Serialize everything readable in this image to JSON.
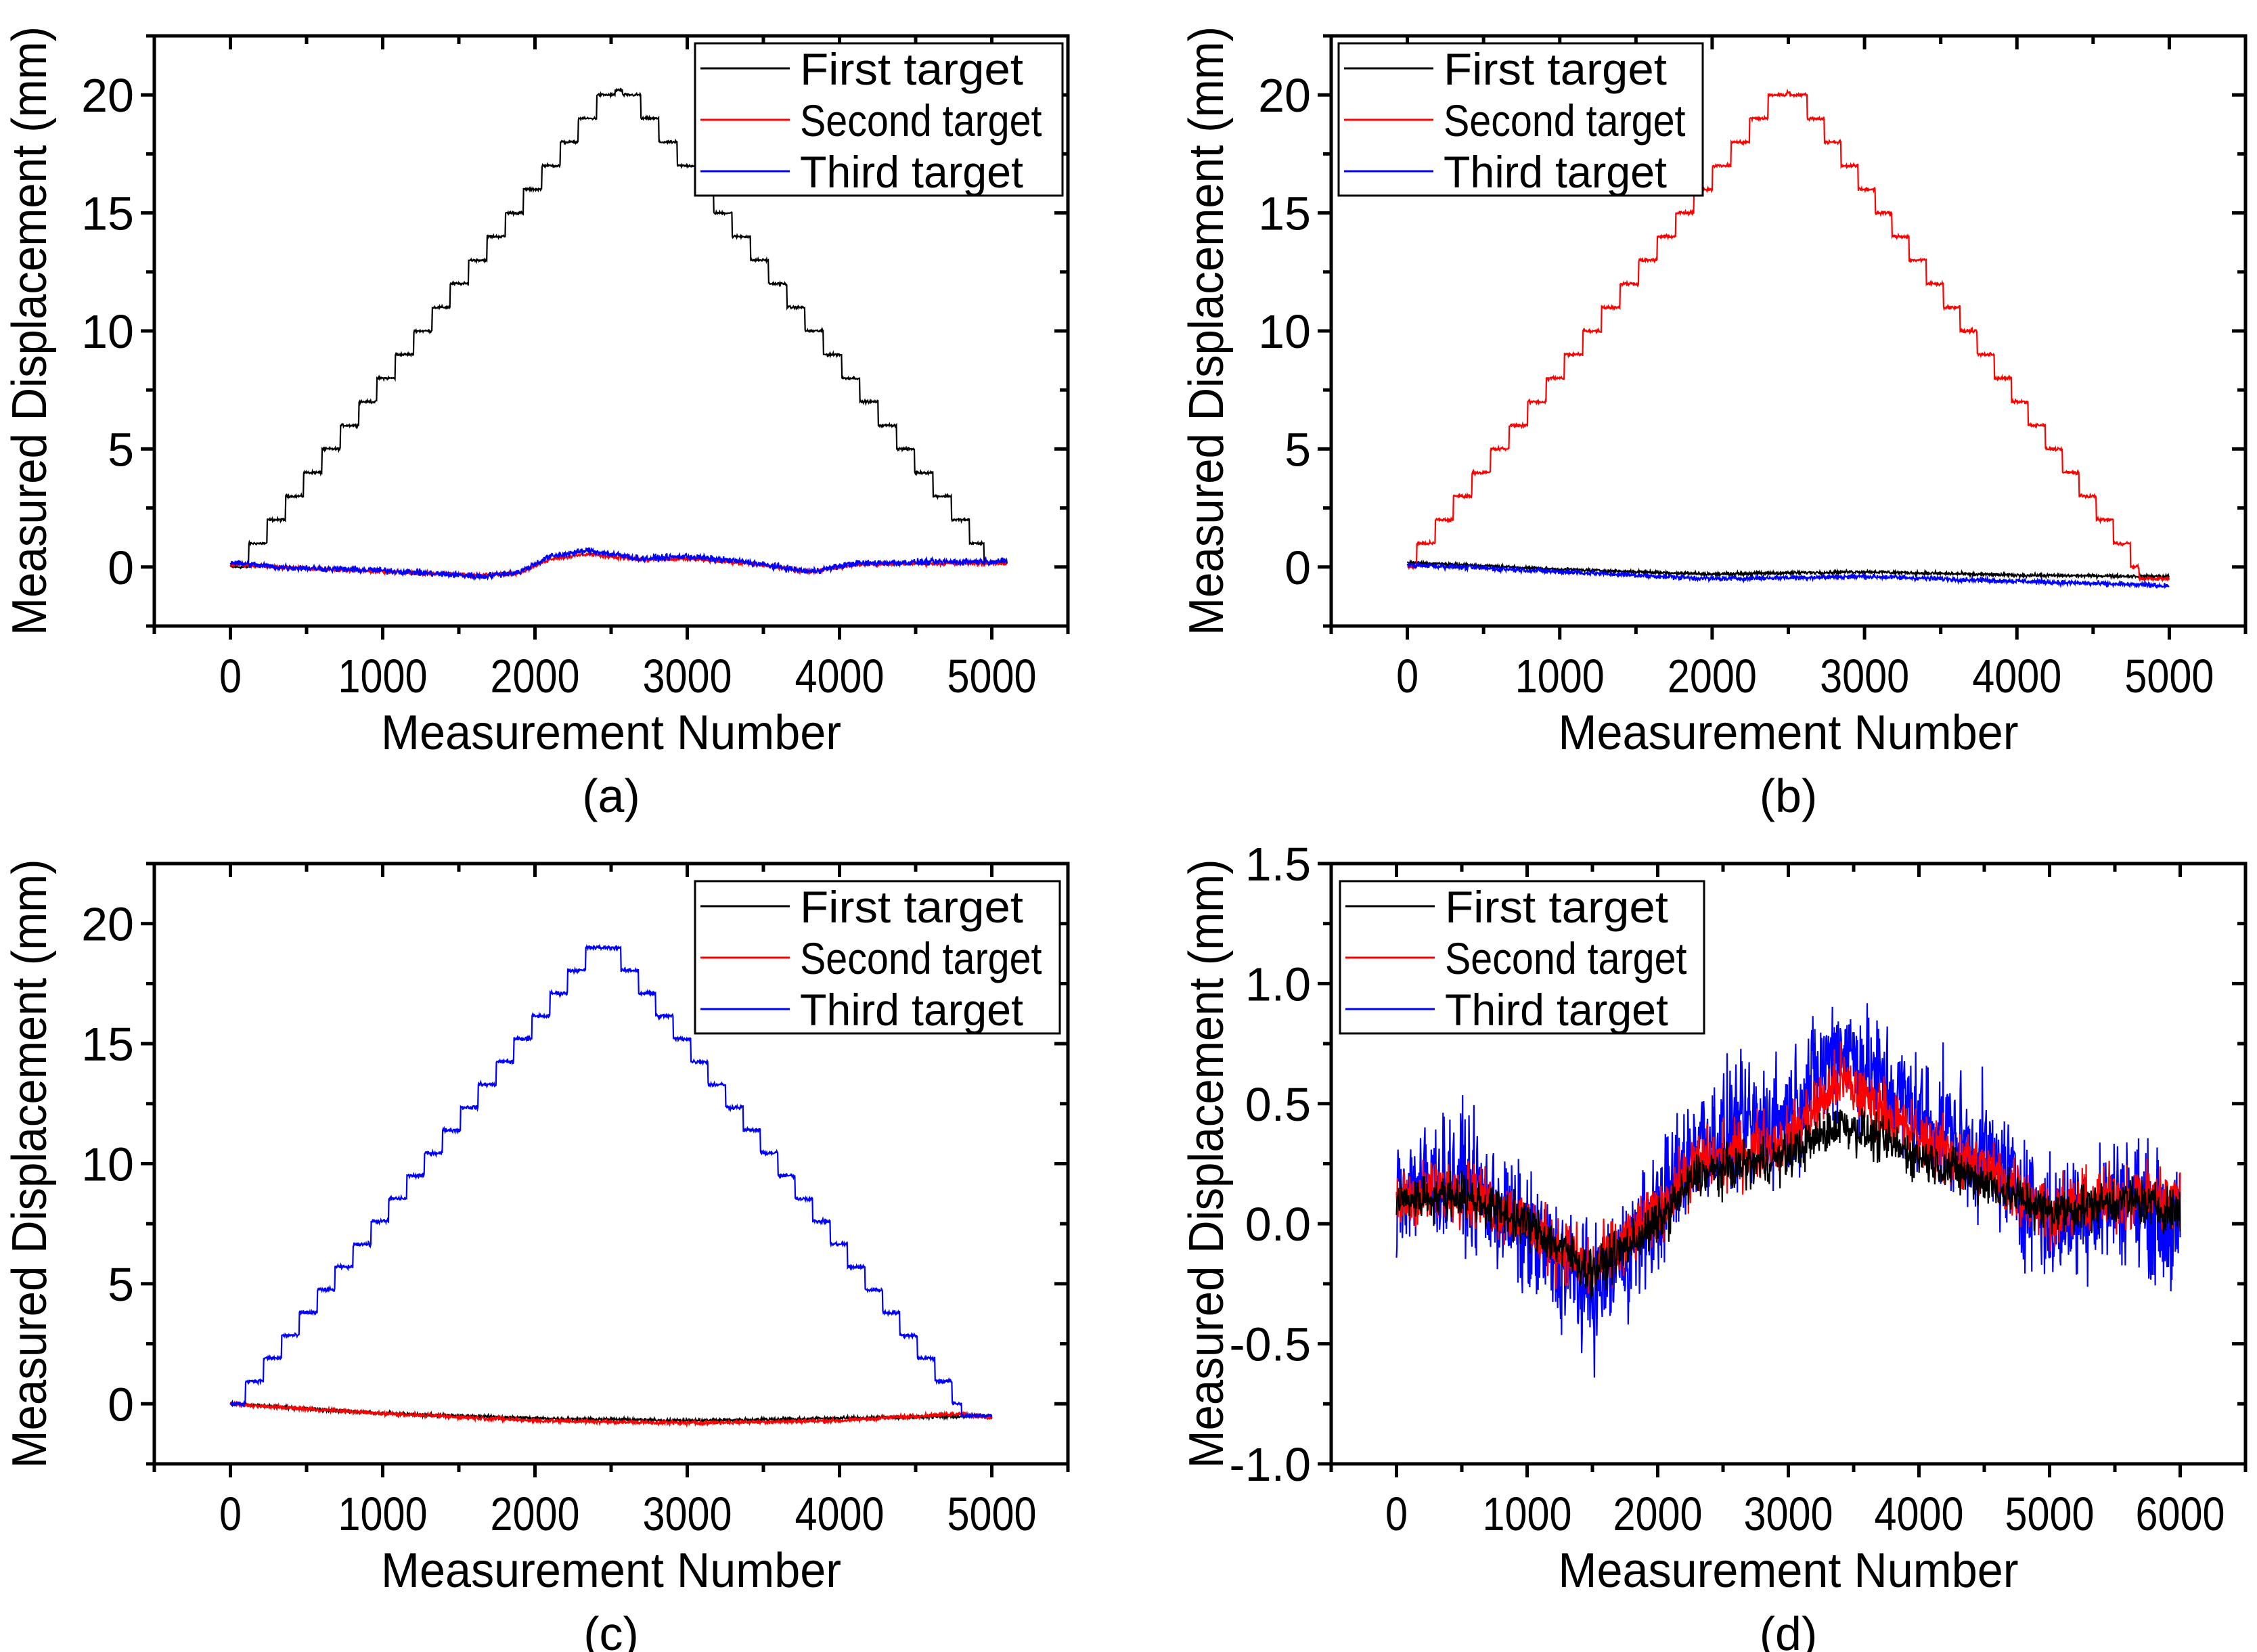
{
  "chart_data": [
    {
      "type": "line",
      "caption": "(a)",
      "xlabel": "Measurement Number",
      "ylabel": "Measured Displacement (mm)",
      "xlim": [
        -500,
        5500
      ],
      "ylim": [
        -2.5,
        22.5
      ],
      "xticks": [
        0,
        1000,
        2000,
        3000,
        4000,
        5000
      ],
      "xtick_labels": [
        "0",
        "1000",
        "2000",
        "3000",
        "4000",
        "5000"
      ],
      "yticks": [
        0,
        5,
        10,
        15,
        20
      ],
      "ytick_labels": [
        "0",
        "5",
        "10",
        "15",
        "20"
      ],
      "xminor": 500,
      "yminor": 2.5,
      "legend": {
        "placement": "top-right",
        "entries": [
          "First target",
          "Second target",
          "Third target"
        ]
      },
      "series": [
        {
          "name": "First target",
          "color": "#000000",
          "kind": "staircase",
          "x_end": 5100,
          "peak_x": 2550,
          "peak_y": 20.2,
          "start_x": 120,
          "end_x": 4950,
          "end_y": 0.2,
          "step_mm": 1,
          "noise": 0.08
        },
        {
          "name": "Second target",
          "color": "#ff0000",
          "kind": "trend",
          "x_end": 5100,
          "noise": 0.12,
          "points": [
            [
              0,
              0.1
            ],
            [
              300,
              0.0
            ],
            [
              1000,
              -0.2
            ],
            [
              1650,
              -0.35
            ],
            [
              1900,
              -0.25
            ],
            [
              2100,
              0.35
            ],
            [
              2350,
              0.55
            ],
            [
              2700,
              0.3
            ],
            [
              3000,
              0.35
            ],
            [
              3400,
              0.15
            ],
            [
              3800,
              -0.2
            ],
            [
              4100,
              0.1
            ],
            [
              4500,
              0.15
            ],
            [
              5100,
              0.15
            ]
          ]
        },
        {
          "name": "Third target",
          "color": "#0000ff",
          "kind": "trend",
          "x_end": 5100,
          "noise": 0.2,
          "points": [
            [
              0,
              0.2
            ],
            [
              300,
              0.0
            ],
            [
              1000,
              -0.15
            ],
            [
              1650,
              -0.4
            ],
            [
              1900,
              -0.2
            ],
            [
              2100,
              0.45
            ],
            [
              2350,
              0.7
            ],
            [
              2700,
              0.35
            ],
            [
              3000,
              0.45
            ],
            [
              3400,
              0.2
            ],
            [
              3800,
              -0.2
            ],
            [
              4100,
              0.15
            ],
            [
              4500,
              0.2
            ],
            [
              5100,
              0.25
            ]
          ]
        }
      ]
    },
    {
      "type": "line",
      "caption": "(b)",
      "xlabel": "Measurement Number",
      "ylabel": "Measured Displacement (mm)",
      "xlim": [
        -500,
        5500
      ],
      "ylim": [
        -2.5,
        22.5
      ],
      "xticks": [
        0,
        1000,
        2000,
        3000,
        4000,
        5000
      ],
      "xtick_labels": [
        "0",
        "1000",
        "2000",
        "3000",
        "4000",
        "5000"
      ],
      "yticks": [
        0,
        5,
        10,
        15,
        20
      ],
      "ytick_labels": [
        "0",
        "5",
        "10",
        "15",
        "20"
      ],
      "xminor": 500,
      "yminor": 2.5,
      "legend": {
        "placement": "top-left",
        "entries": [
          "First target",
          "Second target",
          "Third target"
        ]
      },
      "series": [
        {
          "name": "First target",
          "color": "#000000",
          "kind": "trend",
          "x_end": 5000,
          "noise": 0.1,
          "points": [
            [
              0,
              0.2
            ],
            [
              1000,
              -0.1
            ],
            [
              2000,
              -0.3
            ],
            [
              3000,
              -0.2
            ],
            [
              4000,
              -0.35
            ],
            [
              5000,
              -0.4
            ]
          ]
        },
        {
          "name": "Second target",
          "color": "#ff0000",
          "kind": "staircase",
          "x_end": 5000,
          "peak_x": 2500,
          "peak_y": 20.1,
          "start_x": 60,
          "end_x": 4800,
          "end_y": -0.5,
          "step_mm": 1,
          "noise": 0.1
        },
        {
          "name": "Third target",
          "color": "#0000ff",
          "kind": "trend",
          "x_end": 5000,
          "noise": 0.15,
          "points": [
            [
              0,
              0.1
            ],
            [
              1000,
              -0.2
            ],
            [
              2000,
              -0.5
            ],
            [
              3000,
              -0.4
            ],
            [
              4000,
              -0.6
            ],
            [
              5000,
              -0.8
            ]
          ]
        }
      ]
    },
    {
      "type": "line",
      "caption": "(c)",
      "xlabel": "Measurement Number",
      "ylabel": "Measured Displacement (mm)",
      "xlim": [
        -500,
        5500
      ],
      "ylim": [
        -2.5,
        22.5
      ],
      "xticks": [
        0,
        1000,
        2000,
        3000,
        4000,
        5000
      ],
      "xtick_labels": [
        "0",
        "1000",
        "2000",
        "3000",
        "4000",
        "5000"
      ],
      "yticks": [
        0,
        5,
        10,
        15,
        20
      ],
      "ytick_labels": [
        "0",
        "5",
        "10",
        "15",
        "20"
      ],
      "xminor": 500,
      "yminor": 2.5,
      "legend": {
        "placement": "top-right",
        "entries": [
          "First target",
          "Second target",
          "Third target"
        ]
      },
      "series": [
        {
          "name": "First target",
          "color": "#000000",
          "kind": "trend",
          "x_end": 5000,
          "noise": 0.1,
          "points": [
            [
              0,
              0.0
            ],
            [
              1000,
              -0.4
            ],
            [
              2000,
              -0.6
            ],
            [
              3000,
              -0.7
            ],
            [
              4000,
              -0.6
            ],
            [
              5000,
              -0.5
            ]
          ]
        },
        {
          "name": "Second target",
          "color": "#ff0000",
          "kind": "trend",
          "x_end": 5000,
          "noise": 0.12,
          "points": [
            [
              0,
              0.0
            ],
            [
              200,
              -0.1
            ],
            [
              1000,
              -0.4
            ],
            [
              2000,
              -0.7
            ],
            [
              3000,
              -0.8
            ],
            [
              4000,
              -0.7
            ],
            [
              4800,
              -0.4
            ],
            [
              5000,
              -0.6
            ]
          ]
        },
        {
          "name": "Third target",
          "color": "#0000ff",
          "kind": "staircase",
          "x_end": 5000,
          "peak_x": 2450,
          "peak_y": 19.0,
          "start_x": 100,
          "end_x": 4800,
          "end_y": -0.5,
          "step_mm": 0.95,
          "noise": 0.12
        }
      ]
    },
    {
      "type": "line",
      "caption": "(d)",
      "xlabel": "Measurement Number",
      "ylabel": "Measured Displacement (mm)",
      "xlim": [
        -500,
        6500
      ],
      "ylim": [
        -1.0,
        1.5
      ],
      "xticks": [
        0,
        1000,
        2000,
        3000,
        4000,
        5000,
        6000
      ],
      "xtick_labels": [
        "0",
        "1000",
        "2000",
        "3000",
        "4000",
        "5000",
        "6000"
      ],
      "yticks": [
        -1.0,
        -0.5,
        0.0,
        0.5,
        1.0,
        1.5
      ],
      "ytick_labels": [
        "-1.0",
        "-0.5",
        "0.0",
        "0.5",
        "1.0",
        "1.5"
      ],
      "xminor": 500,
      "yminor": 0.25,
      "legend": {
        "placement": "top-left",
        "entries": [
          "First target",
          "Second target",
          "Third target"
        ]
      },
      "series": [
        {
          "name": "Third target",
          "color": "#0000ff",
          "kind": "trend",
          "x_end": 6000,
          "noise": 0.38,
          "points": [
            [
              0,
              0.15
            ],
            [
              500,
              0.2
            ],
            [
              1000,
              -0.05
            ],
            [
              1500,
              -0.3
            ],
            [
              2000,
              0.05
            ],
            [
              2300,
              0.35
            ],
            [
              3000,
              0.45
            ],
            [
              3400,
              0.75
            ],
            [
              4000,
              0.45
            ],
            [
              4600,
              0.25
            ],
            [
              5000,
              0.0
            ],
            [
              5600,
              0.12
            ],
            [
              6000,
              -0.05
            ]
          ]
        },
        {
          "name": "Second target",
          "color": "#ff0000",
          "kind": "trend",
          "x_end": 6000,
          "noise": 0.2,
          "points": [
            [
              0,
              0.1
            ],
            [
              500,
              0.15
            ],
            [
              1000,
              0.0
            ],
            [
              1500,
              -0.2
            ],
            [
              2000,
              0.05
            ],
            [
              2300,
              0.25
            ],
            [
              3000,
              0.35
            ],
            [
              3400,
              0.6
            ],
            [
              4000,
              0.35
            ],
            [
              4600,
              0.2
            ],
            [
              5000,
              0.05
            ],
            [
              5600,
              0.12
            ],
            [
              6000,
              0.1
            ]
          ]
        },
        {
          "name": "First target",
          "color": "#000000",
          "kind": "trend",
          "x_end": 6000,
          "noise": 0.14,
          "points": [
            [
              0,
              0.1
            ],
            [
              500,
              0.12
            ],
            [
              1000,
              0.0
            ],
            [
              1500,
              -0.2
            ],
            [
              2000,
              0.0
            ],
            [
              2300,
              0.2
            ],
            [
              3000,
              0.28
            ],
            [
              3400,
              0.42
            ],
            [
              4000,
              0.28
            ],
            [
              4600,
              0.15
            ],
            [
              5000,
              0.05
            ],
            [
              5600,
              0.1
            ],
            [
              6000,
              0.05
            ]
          ]
        }
      ]
    }
  ]
}
